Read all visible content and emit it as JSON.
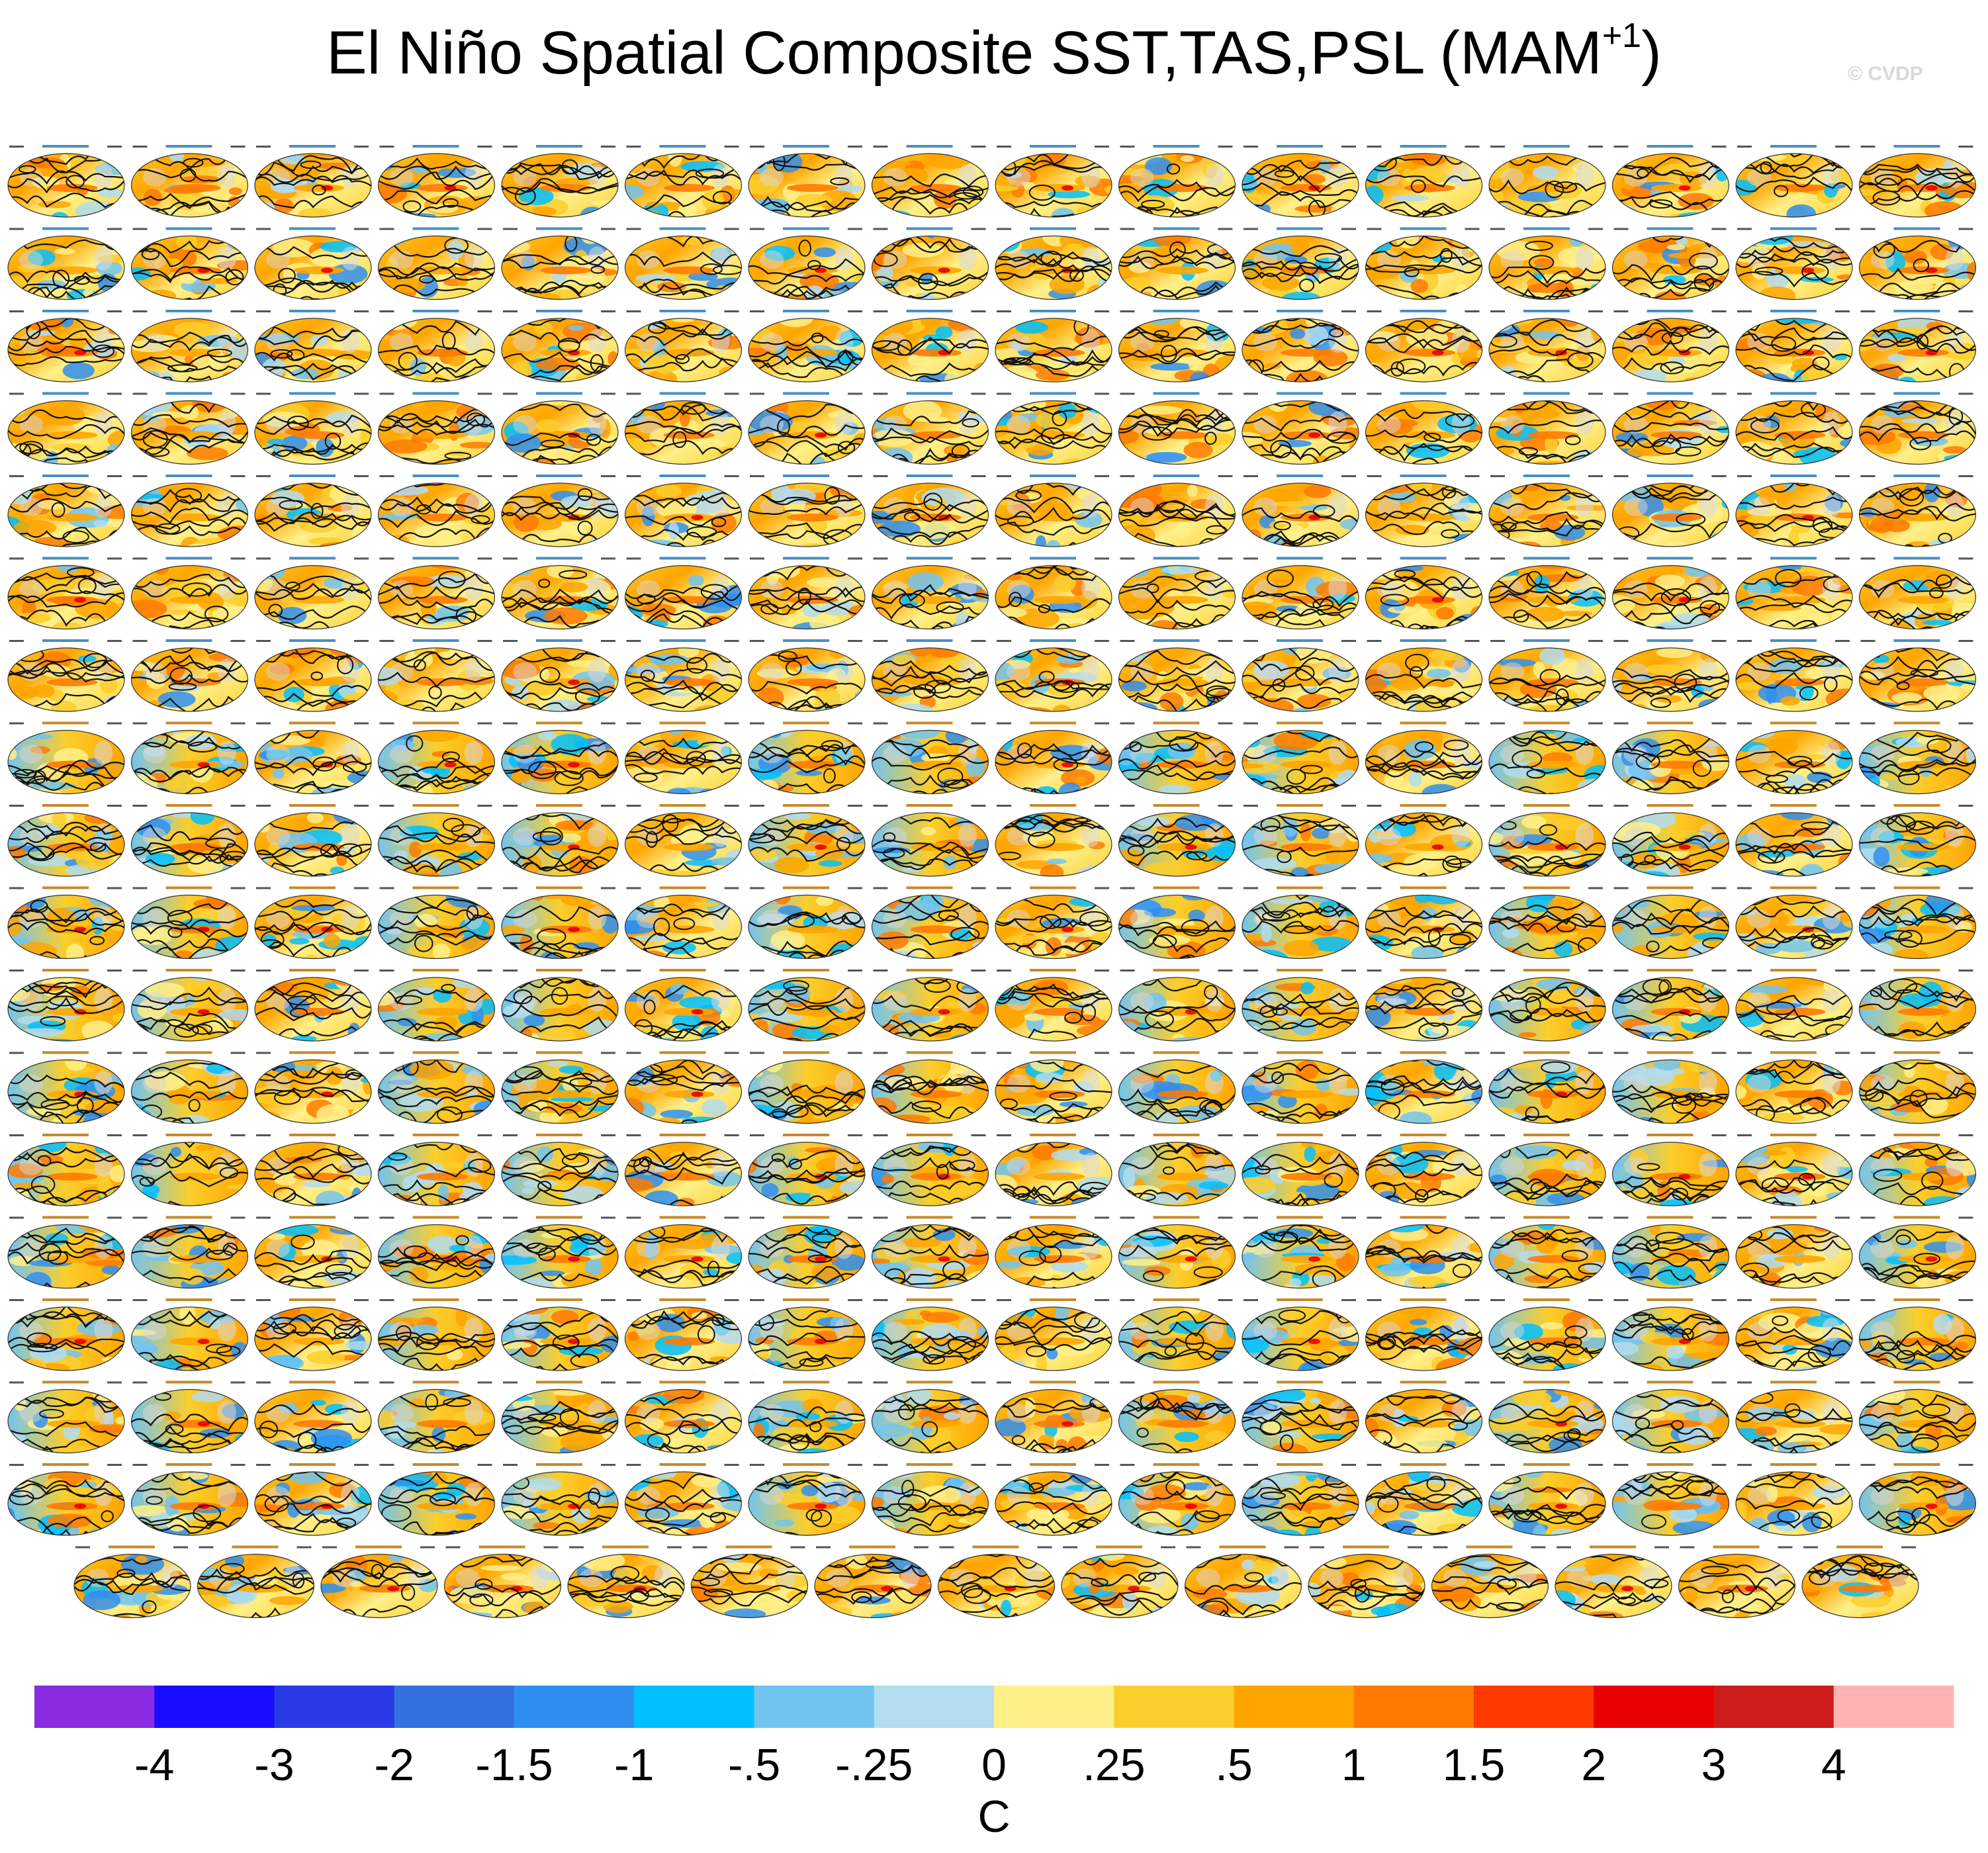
{
  "title": {
    "main": "El Niño Spatial Composite SST,TAS,PSL (MAM",
    "sup": "+1",
    "close": ")"
  },
  "watermark": "© CVDP",
  "chart_data": {
    "type": "heatmap",
    "description_title": "El Niño Spatial Composite SST,TAS,PSL (MAM+1)",
    "colorbar": {
      "unit": "C",
      "ticks": [
        "-4",
        "-3",
        "-2",
        "-1.5",
        "-1",
        "-.5",
        "-.25",
        "0",
        ".25",
        ".5",
        "1",
        "1.5",
        "2",
        "3",
        "4"
      ],
      "colors": [
        "#8a2be2",
        "#1a0dff",
        "#2a3be6",
        "#3372de",
        "#2f8ff0",
        "#00bfff",
        "#72c4f0",
        "#b2dcf0",
        "#fff08a",
        "#fcce2c",
        "#ffa500",
        "#ff7a00",
        "#ff3a00",
        "#e80000",
        "#cc1c1c",
        "#ffb3b3"
      ]
    },
    "panel_grid": {
      "rows": 18,
      "cols": 16,
      "last_row_count": 15
    }
  }
}
